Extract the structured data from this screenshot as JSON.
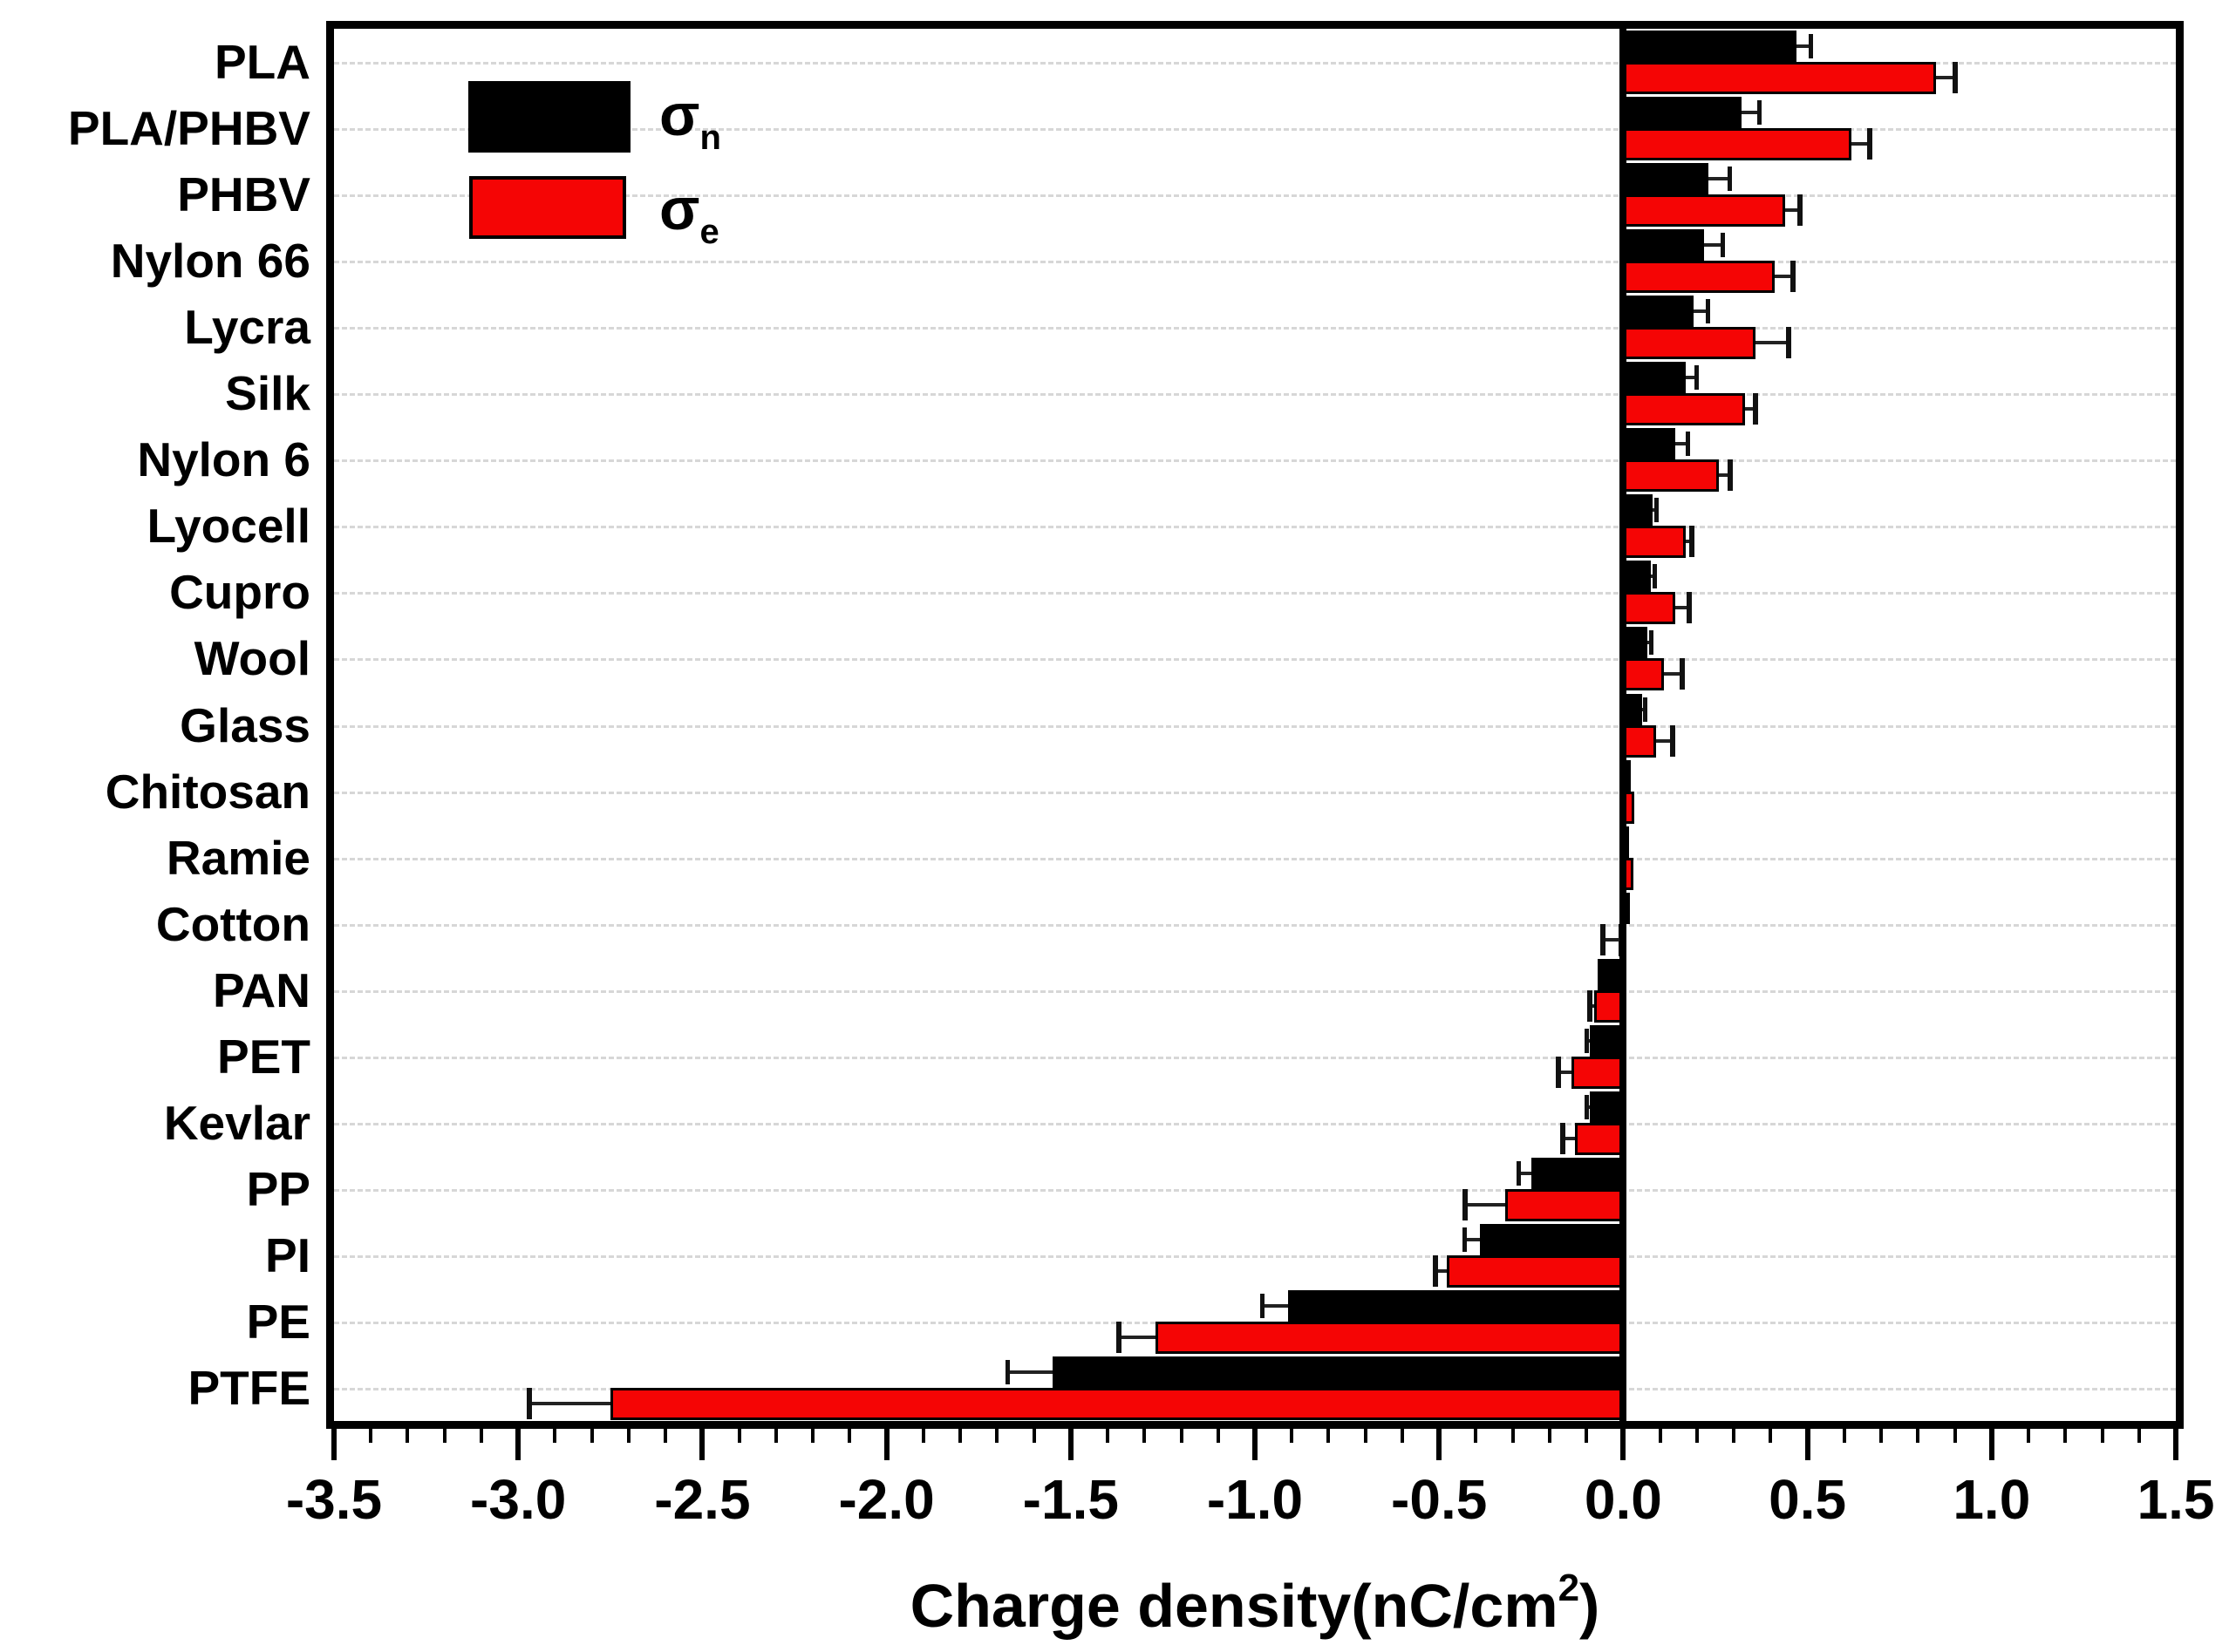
{
  "figure": {
    "background": "#ffffff",
    "frame_color": "#000000",
    "gridline_color": "#d7d7d7",
    "axis_title": {
      "prefix": "Charge density(nC/cm",
      "superscript": "2",
      "suffix": ")"
    },
    "legend": {
      "sigma_n": {
        "symbol": "σ",
        "subscript": "n",
        "swatch_color": "#000000"
      },
      "sigma_e": {
        "symbol": "σ",
        "subscript": "e",
        "swatch_color": "#f50505"
      }
    }
  },
  "chart_data": {
    "type": "bar",
    "orientation": "horizontal",
    "title": "",
    "xlabel": "Charge density(nC/cm2)",
    "ylabel": "",
    "xlim": [
      -3.5,
      1.5
    ],
    "x_major_tick_step": 0.5,
    "x_minor_tick_step": 0.1,
    "x_tick_labels": [
      "-3.5",
      "-3.0",
      "-2.5",
      "-2.0",
      "-1.5",
      "-1.0",
      "-0.5",
      "0.0",
      "0.5",
      "1.0",
      "1.5"
    ],
    "grid": "horizontal-dashed-at-category-centers",
    "legend_position": "top-left-inside",
    "error_bars": "outward-with-caps",
    "categories": [
      "PLA",
      "PLA/PHBV",
      "PHBV",
      "Nylon 66",
      "Lycra",
      "Silk",
      "Nylon 6",
      "Lyocell",
      "Cupro",
      "Wool",
      "Glass",
      "Chitosan",
      "Ramie",
      "Cotton",
      "PAN",
      "PET",
      "Kevlar",
      "PP",
      "PI",
      "PE",
      "PTFE"
    ],
    "series": [
      {
        "name": "σn",
        "color": "#000000",
        "values": [
          0.47,
          0.32,
          0.23,
          0.22,
          0.19,
          0.17,
          0.14,
          0.08,
          0.075,
          0.065,
          0.05,
          0.02,
          0.015,
          0.018,
          -0.07,
          -0.09,
          -0.09,
          -0.25,
          -0.39,
          -0.91,
          -1.55
        ],
        "errors": [
          0.04,
          0.05,
          0.06,
          0.05,
          0.04,
          0.03,
          0.035,
          0.01,
          0.01,
          0.01,
          0.01,
          0,
          0,
          0,
          0,
          0.01,
          0.01,
          0.035,
          0.04,
          0.07,
          0.12
        ]
      },
      {
        "name": "σe",
        "color": "#f50505",
        "values": [
          0.85,
          0.62,
          0.44,
          0.41,
          0.36,
          0.33,
          0.26,
          0.17,
          0.14,
          0.11,
          0.09,
          0.03,
          0.028,
          -0.01,
          -0.08,
          -0.14,
          -0.13,
          -0.32,
          -0.48,
          -1.27,
          -2.75
        ],
        "errors": [
          0.05,
          0.05,
          0.04,
          0.05,
          0.09,
          0.03,
          0.03,
          0.015,
          0.04,
          0.05,
          0.045,
          0,
          0,
          0.045,
          0.01,
          0.035,
          0.035,
          0.11,
          0.03,
          0.1,
          0.22
        ]
      }
    ]
  }
}
